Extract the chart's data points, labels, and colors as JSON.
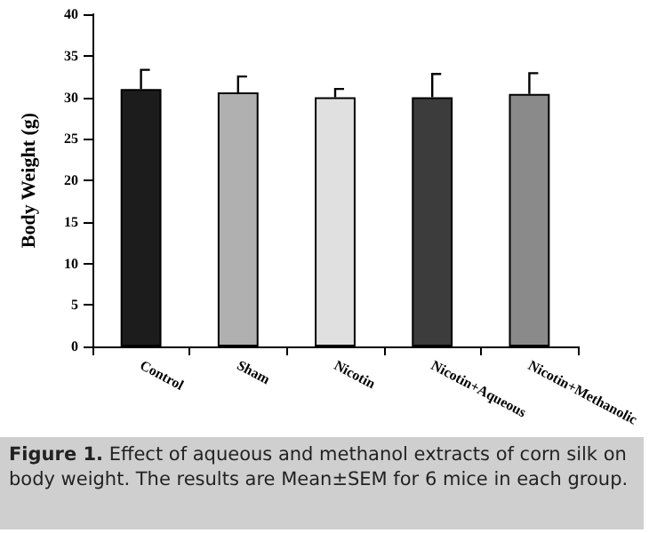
{
  "chart_data": {
    "type": "bar",
    "ylabel": "Body Weight (g)",
    "categories": [
      "Control",
      "Sham",
      "Nicotin",
      "Nicotin+Aqueous",
      "Nicotin+Methanolic"
    ],
    "values": [
      31.0,
      30.6,
      30.0,
      30.0,
      30.4
    ],
    "errors": [
      2.3,
      1.9,
      1.0,
      2.8,
      2.5
    ],
    "colors": [
      "#1c1c1c",
      "#b0b0b0",
      "#e0e0e0",
      "#3c3c3c",
      "#8a8a8a"
    ],
    "ylim": [
      0,
      40
    ],
    "yticks": [
      0,
      5,
      10,
      15,
      20,
      25,
      30,
      35,
      40
    ],
    "grid": false,
    "annotations": [
      "Figure 1.",
      "Effect of aqueous and methanol extracts of corn silk on body weight. The results are Mean±SEM for 6 mice in each group."
    ]
  }
}
